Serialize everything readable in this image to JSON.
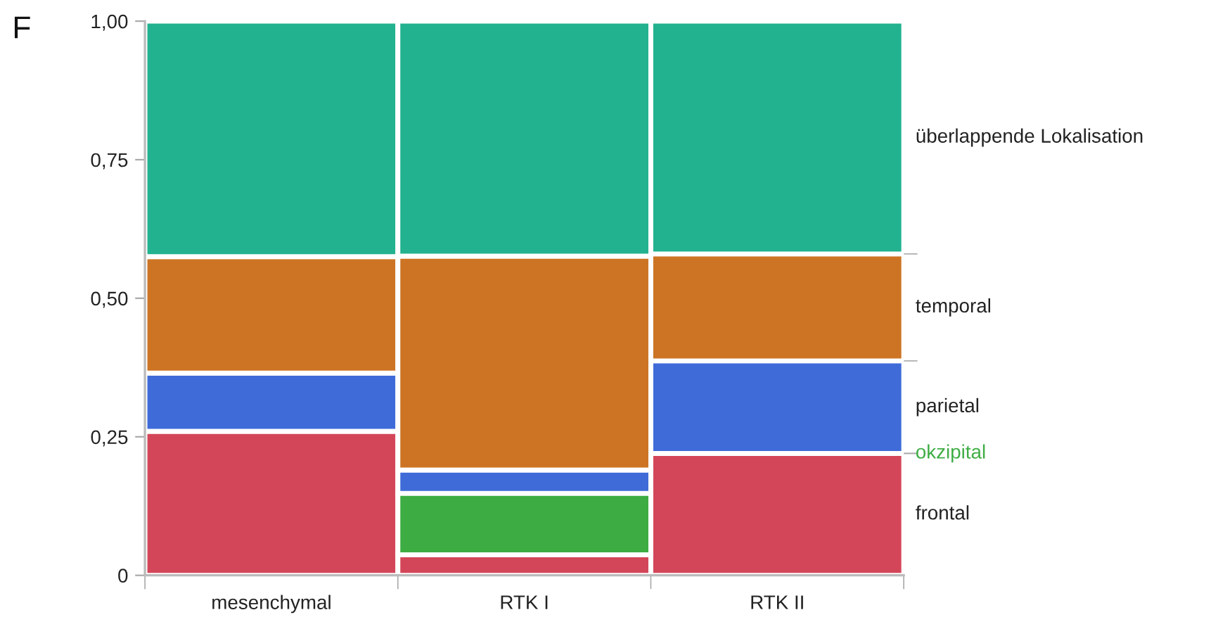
{
  "chart_data": {
    "type": "bar",
    "title": "F",
    "stacked": true,
    "legend": false,
    "categories": [
      "mesenchymal",
      "RTK I",
      "RTK II"
    ],
    "series": [
      {
        "name": "frontal",
        "color": "#d34659",
        "values": [
          0.26,
          0.037,
          0.22
        ]
      },
      {
        "name": "okzipital",
        "color": "#3dad43",
        "values": [
          0,
          0.111,
          0
        ]
      },
      {
        "name": "parietal",
        "color": "#3f6bd8",
        "values": [
          0.105,
          0.042,
          0.167
        ]
      },
      {
        "name": "temporal",
        "color": "#cc7424",
        "values": [
          0.21,
          0.386,
          0.193
        ]
      },
      {
        "name": "überlappende Lokalisation",
        "color": "#22b28f",
        "values": [
          0.425,
          0.424,
          0.42
        ]
      }
    ],
    "ylim": [
      0,
      1
    ],
    "yticks": [
      0,
      {
        "value": 0.25,
        "label": "0,25"
      },
      {
        "value": 0.5,
        "label": "0,50"
      },
      {
        "value": 0.75,
        "label": "0,75"
      },
      {
        "value": 1,
        "label": "1,00"
      }
    ]
  }
}
